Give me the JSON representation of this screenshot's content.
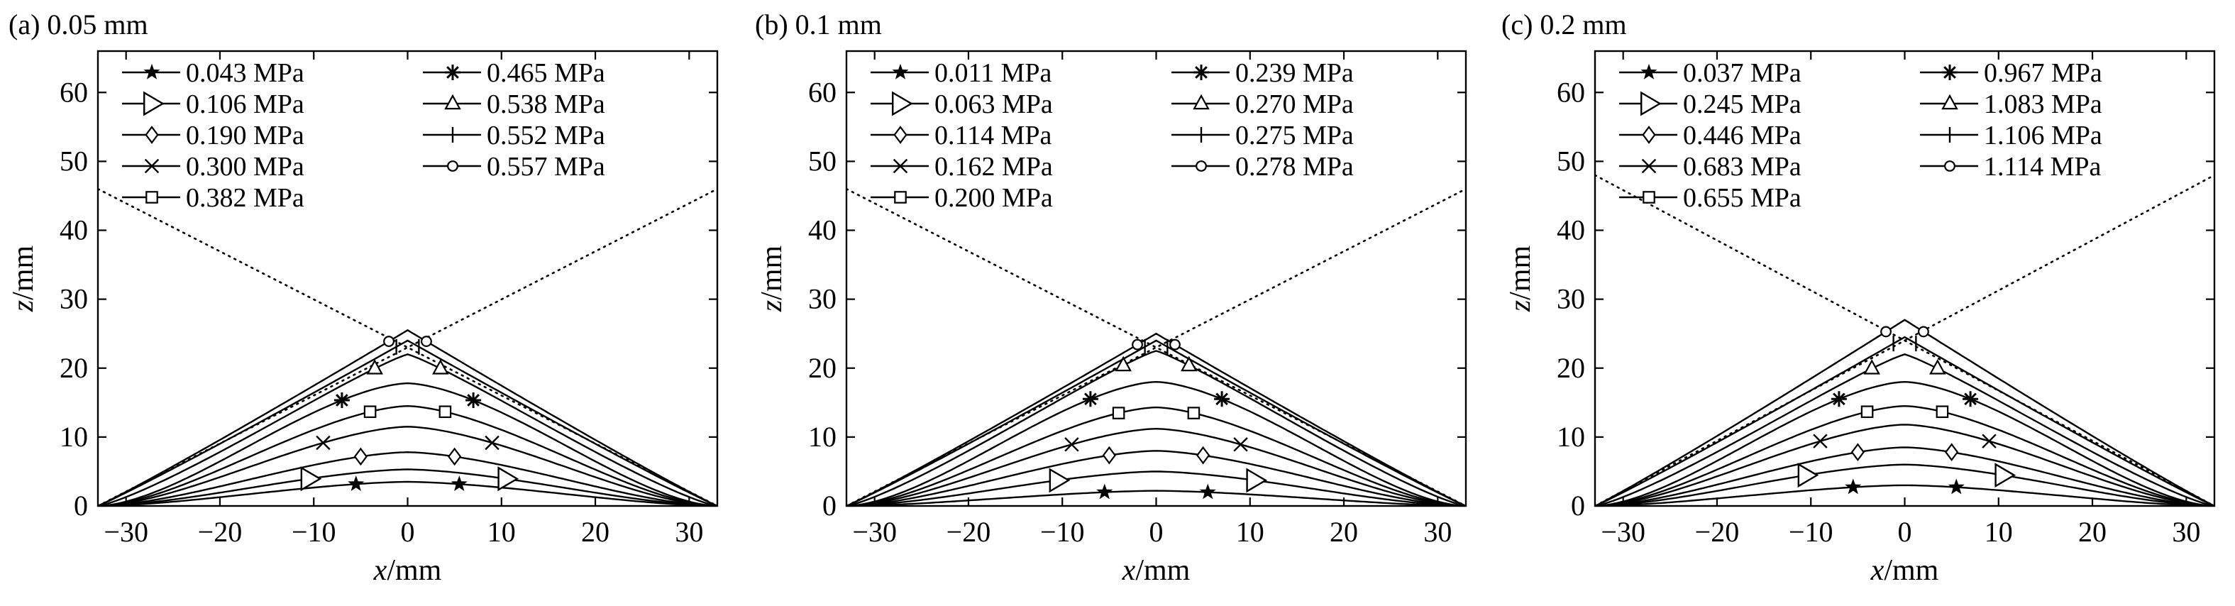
{
  "chart_data": [
    {
      "type": "line",
      "panel_title": "(a) 0.05 mm",
      "xlabel": "x/mm",
      "ylabel": "z/mm",
      "xlim": [
        -33,
        33
      ],
      "ylim": [
        0,
        66
      ],
      "xticks": [
        -30,
        -20,
        -10,
        0,
        10,
        20,
        30
      ],
      "yticks": [
        0,
        10,
        20,
        30,
        40,
        50,
        60
      ],
      "grid": false,
      "legend_position": "top",
      "legend_columns": 2,
      "reference_lines": [
        {
          "style": "dotted",
          "x": [
            -33,
            33
          ],
          "y": [
            0,
            46
          ]
        },
        {
          "style": "dotted",
          "x": [
            -33,
            33
          ],
          "y": [
            46,
            0
          ]
        }
      ],
      "series": [
        {
          "name": "0.043 MPa",
          "marker": "star",
          "apex": 3.5
        },
        {
          "name": "0.106 MPa",
          "marker": "triangle-right",
          "apex": 5.3
        },
        {
          "name": "0.190 MPa",
          "marker": "diamond",
          "apex": 7.8
        },
        {
          "name": "0.300 MPa",
          "marker": "x",
          "apex": 11.5
        },
        {
          "name": "0.382 MPa",
          "marker": "square",
          "apex": 14.5
        },
        {
          "name": "0.465 MPa",
          "marker": "asterisk",
          "apex": 17.8
        },
        {
          "name": "0.538 MPa",
          "marker": "triangle-up",
          "apex": 22.0
        },
        {
          "name": "0.552 MPa",
          "marker": "plus",
          "apex": 24.0
        },
        {
          "name": "0.557 MPa",
          "marker": "circle",
          "apex": 25.5
        }
      ]
    },
    {
      "type": "line",
      "panel_title": "(b) 0.1 mm",
      "xlabel": "x/mm",
      "ylabel": "z/mm",
      "xlim": [
        -33,
        33
      ],
      "ylim": [
        0,
        66
      ],
      "xticks": [
        -30,
        -20,
        -10,
        0,
        10,
        20,
        30
      ],
      "yticks": [
        0,
        10,
        20,
        30,
        40,
        50,
        60
      ],
      "grid": false,
      "legend_position": "top",
      "legend_columns": 2,
      "reference_lines": [
        {
          "style": "dotted",
          "x": [
            -33,
            33
          ],
          "y": [
            0,
            46
          ]
        },
        {
          "style": "dotted",
          "x": [
            -33,
            33
          ],
          "y": [
            46,
            0
          ]
        }
      ],
      "series": [
        {
          "name": "0.011 MPa",
          "marker": "star",
          "apex": 2.2
        },
        {
          "name": "0.063 MPa",
          "marker": "triangle-right",
          "apex": 5.0
        },
        {
          "name": "0.114 MPa",
          "marker": "diamond",
          "apex": 8.0
        },
        {
          "name": "0.162 MPa",
          "marker": "x",
          "apex": 11.2
        },
        {
          "name": "0.200 MPa",
          "marker": "square",
          "apex": 14.3
        },
        {
          "name": "0.239 MPa",
          "marker": "asterisk",
          "apex": 18.0
        },
        {
          "name": "0.270 MPa",
          "marker": "triangle-up",
          "apex": 22.5
        },
        {
          "name": "0.275 MPa",
          "marker": "plus",
          "apex": 24.0
        },
        {
          "name": "0.278 MPa",
          "marker": "circle",
          "apex": 25.0
        }
      ]
    },
    {
      "type": "line",
      "panel_title": "(c) 0.2 mm",
      "xlabel": "x/mm",
      "ylabel": "z/mm",
      "xlim": [
        -33,
        33
      ],
      "ylim": [
        0,
        66
      ],
      "xticks": [
        -30,
        -20,
        -10,
        0,
        10,
        20,
        30
      ],
      "yticks": [
        0,
        10,
        20,
        30,
        40,
        50,
        60
      ],
      "grid": false,
      "legend_position": "top",
      "legend_columns": 2,
      "reference_lines": [
        {
          "style": "dotted",
          "x": [
            -33,
            33
          ],
          "y": [
            0,
            48
          ]
        },
        {
          "style": "dotted",
          "x": [
            -33,
            33
          ],
          "y": [
            48,
            0
          ]
        }
      ],
      "series": [
        {
          "name": "0.037 MPa",
          "marker": "star",
          "apex": 3.0
        },
        {
          "name": "0.245 MPa",
          "marker": "triangle-right",
          "apex": 6.0
        },
        {
          "name": "0.446 MPa",
          "marker": "diamond",
          "apex": 8.5
        },
        {
          "name": "0.683 MPa",
          "marker": "x",
          "apex": 11.8
        },
        {
          "name": "0.655 MPa",
          "marker": "square",
          "apex": 14.5
        },
        {
          "name": "0.967 MPa",
          "marker": "asterisk",
          "apex": 18.0
        },
        {
          "name": "1.083 MPa",
          "marker": "triangle-up",
          "apex": 22.0
        },
        {
          "name": "1.106 MPa",
          "marker": "plus",
          "apex": 24.5
        },
        {
          "name": "1.114 MPa",
          "marker": "circle",
          "apex": 27.0
        }
      ]
    }
  ]
}
